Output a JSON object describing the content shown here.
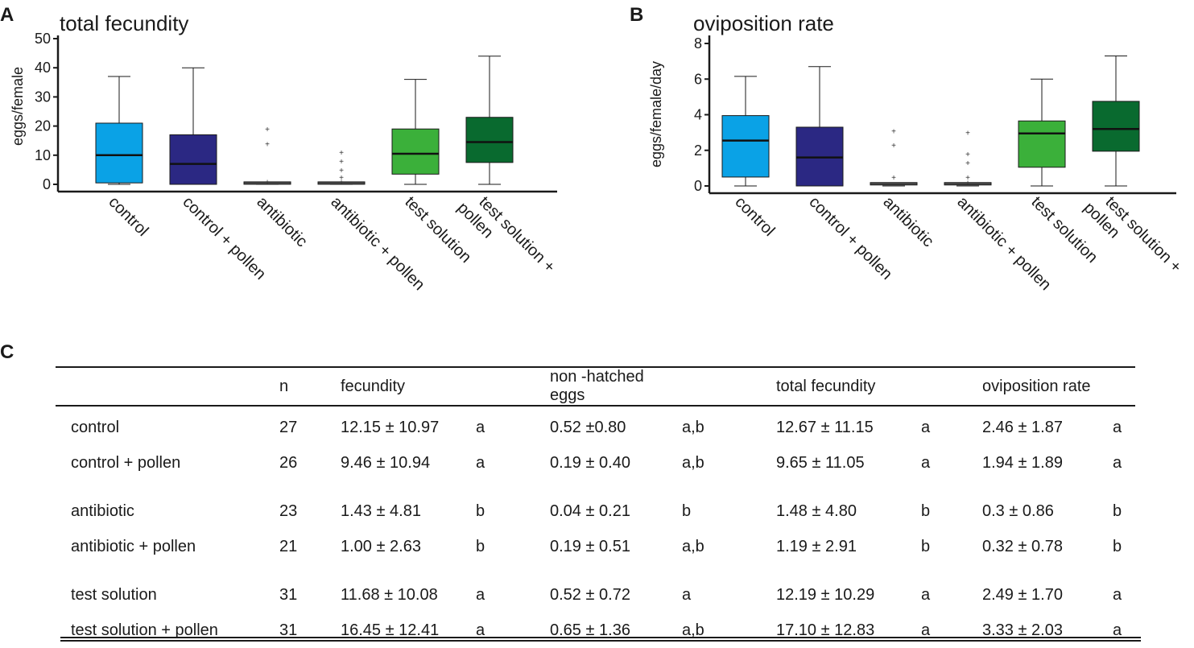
{
  "colors": {
    "control": "#0aa2e6",
    "control_pollen": "#2b2883",
    "antibiotic": "#4a4a4a",
    "antibiotic_pollen": "#4a4a4a",
    "test_solution": "#3bb03a",
    "test_solution_pollen": "#096a2f",
    "axis": "#1a1a1a"
  },
  "chart_data": [
    {
      "panel": "A",
      "type": "box",
      "title": "total fecundity",
      "xlabel": "",
      "ylabel": "eggs/female",
      "ylim": [
        0,
        50
      ],
      "yticks": [
        0,
        10,
        20,
        30,
        40,
        50
      ],
      "categories": [
        "control",
        "control + pollen",
        "antibiotic",
        "antibiotic + pollen",
        "test solution",
        "test solution + pollen"
      ],
      "category_labels": [
        [
          "control"
        ],
        [
          "control + pollen"
        ],
        [
          "antibiotic"
        ],
        [
          "antibiotic + pollen"
        ],
        [
          "test solution"
        ],
        [
          "test solution +",
          "pollen"
        ]
      ],
      "boxes": [
        {
          "min": 0,
          "q1": 0.5,
          "median": 10,
          "q3": 21,
          "max": 37,
          "outliers": []
        },
        {
          "min": 0,
          "q1": 0,
          "median": 7,
          "q3": 17,
          "max": 40,
          "outliers": []
        },
        {
          "min": 0,
          "q1": 0,
          "median": 0,
          "q3": 0.3,
          "max": 0.3,
          "outliers": [
            1,
            14,
            19
          ]
        },
        {
          "min": 0,
          "q1": 0,
          "median": 0,
          "q3": 0.3,
          "max": 0.3,
          "outliers": [
            1,
            2.5,
            5,
            8,
            11
          ]
        },
        {
          "min": 0,
          "q1": 3.5,
          "median": 10.5,
          "q3": 19,
          "max": 36,
          "outliers": []
        },
        {
          "min": 0,
          "q1": 7.5,
          "median": 14.5,
          "q3": 23,
          "max": 44,
          "outliers": []
        }
      ]
    },
    {
      "panel": "B",
      "type": "box",
      "title": "oviposition rate",
      "xlabel": "",
      "ylabel": "eggs/female/day",
      "ylim": [
        0,
        8
      ],
      "yticks": [
        0,
        2,
        4,
        6,
        8
      ],
      "categories": [
        "control",
        "control + pollen",
        "antibiotic",
        "antibiotic + pollen",
        "test solution",
        "test solution + pollen"
      ],
      "category_labels": [
        [
          "control"
        ],
        [
          "control + pollen"
        ],
        [
          "antibiotic"
        ],
        [
          "antibiotic + pollen"
        ],
        [
          "test solution"
        ],
        [
          "test solution +",
          "pollen"
        ]
      ],
      "boxes": [
        {
          "min": 0,
          "q1": 0.5,
          "median": 2.55,
          "q3": 3.95,
          "max": 6.15,
          "outliers": []
        },
        {
          "min": 0,
          "q1": 0,
          "median": 1.6,
          "q3": 3.3,
          "max": 6.7,
          "outliers": []
        },
        {
          "min": 0,
          "q1": 0,
          "median": 0.05,
          "q3": 0.1,
          "max": 0.1,
          "outliers": [
            0.5,
            2.3,
            3.1
          ]
        },
        {
          "min": 0,
          "q1": 0,
          "median": 0.05,
          "q3": 0.1,
          "max": 0.1,
          "outliers": [
            0.2,
            0.5,
            1.3,
            1.8,
            3.0
          ]
        },
        {
          "min": 0,
          "q1": 1.05,
          "median": 2.95,
          "q3": 3.65,
          "max": 6.0,
          "outliers": []
        },
        {
          "min": 0,
          "q1": 1.95,
          "median": 3.2,
          "q3": 4.75,
          "max": 7.3,
          "outliers": []
        }
      ]
    }
  ],
  "panel_c": {
    "letter": "C",
    "headers": [
      "",
      "n",
      "fecundity",
      "",
      "non -hatched eggs",
      "",
      "total fecundity",
      "",
      "oviposition rate",
      ""
    ],
    "rows": [
      {
        "name": "control",
        "n": "27",
        "fecundity": "12.15 ± 10.97",
        "fec_sig": "a",
        "nonhatched": "0.52 ±0.80",
        "nh_sig": "a,b",
        "total": "12.67 ± 11.15",
        "tot_sig": "a",
        "ovi": "2.46 ± 1.87",
        "ovi_sig": "a"
      },
      {
        "name": "control + pollen",
        "n": "26",
        "fecundity": "9.46 ± 10.94",
        "fec_sig": "a",
        "nonhatched": "0.19 ± 0.40",
        "nh_sig": "a,b",
        "total": "9.65 ± 11.05",
        "tot_sig": "a",
        "ovi": "1.94 ± 1.89",
        "ovi_sig": "a"
      },
      {
        "name": "antibiotic",
        "n": "23",
        "fecundity": "1.43 ± 4.81",
        "fec_sig": "b",
        "nonhatched": "0.04 ± 0.21",
        "nh_sig": "b",
        "total": "1.48 ± 4.80",
        "tot_sig": "b",
        "ovi": "0.3 ± 0.86",
        "ovi_sig": "b"
      },
      {
        "name": "antibiotic + pollen",
        "n": "21",
        "fecundity": "1.00 ± 2.63",
        "fec_sig": "b",
        "nonhatched": "0.19 ± 0.51",
        "nh_sig": "a,b",
        "total": "1.19 ± 2.91",
        "tot_sig": "b",
        "ovi": "0.32 ± 0.78",
        "ovi_sig": "b"
      },
      {
        "name": "test solution",
        "n": "31",
        "fecundity": "11.68 ± 10.08",
        "fec_sig": "a",
        "nonhatched": "0.52 ± 0.72",
        "nh_sig": "a",
        "total": "12.19 ± 10.29",
        "tot_sig": "a",
        "ovi": "2.49 ± 1.70",
        "ovi_sig": "a"
      },
      {
        "name": "test solution + pollen",
        "n": "31",
        "fecundity": "16.45 ± 12.41",
        "fec_sig": "a",
        "nonhatched": "0.65 ± 1.36",
        "nh_sig": "a,b",
        "total": "17.10 ± 12.83",
        "tot_sig": "a",
        "ovi": "3.33 ± 2.03",
        "ovi_sig": "a"
      }
    ]
  }
}
